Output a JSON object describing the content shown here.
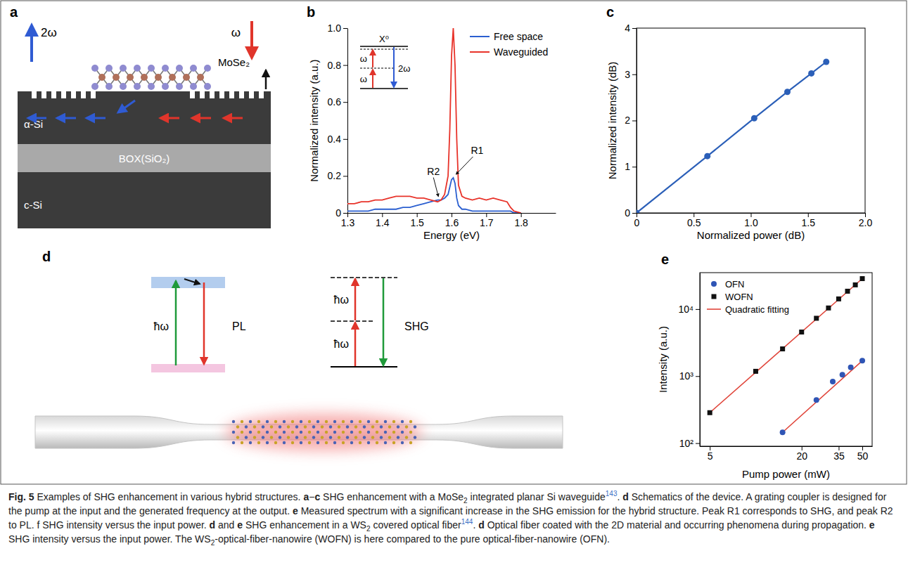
{
  "panel_labels": [
    "a",
    "b",
    "c",
    "d",
    "e"
  ],
  "diagram_a": {
    "out": "2ω",
    "in": "ω",
    "material": "MoSe₂",
    "top_layer": "α-Si",
    "middle_layer": "BOX(SiO₂)",
    "bottom_layer": "c-Si"
  },
  "diagram_b_inset": {
    "level": "X⁰",
    "pump_1": "ω",
    "pump_2": "ω",
    "signal": "2ω"
  },
  "diagram_d": {
    "pl": {
      "photon": "ħω",
      "name": "PL"
    },
    "shg": {
      "photon_1": "ħω",
      "photon_2": "ħω",
      "name": "SHG"
    }
  },
  "chart_data": [
    {
      "type": "line",
      "x_label": "Energy (eV)",
      "y_label": "Normalized intensity (a.u.)",
      "x": [
        1.3,
        1.32,
        1.34,
        1.36,
        1.38,
        1.4,
        1.42,
        1.44,
        1.46,
        1.48,
        1.5,
        1.52,
        1.54,
        1.56,
        1.57,
        1.58,
        1.59,
        1.595,
        1.6,
        1.605,
        1.61,
        1.615,
        1.62,
        1.63,
        1.64,
        1.66,
        1.68,
        1.7,
        1.72,
        1.74,
        1.76,
        1.77,
        1.78,
        1.8
      ],
      "series": [
        {
          "name": "Free space",
          "color": "#2b5fd0",
          "line_style": "solid",
          "values": [
            0.01,
            0.01,
            0.01,
            0.01,
            0.02,
            0.02,
            0.02,
            0.02,
            0.03,
            0.03,
            0.04,
            0.05,
            0.06,
            0.07,
            0.07,
            0.08,
            0.1,
            0.14,
            0.18,
            0.19,
            0.16,
            0.08,
            0.04,
            0.02,
            0.02,
            0.01,
            0.01,
            0.01,
            0.01,
            0.01,
            0.01,
            0.01,
            0.0,
            0.0
          ]
        },
        {
          "name": "Waveguided",
          "color": "#e8332a",
          "line_style": "solid",
          "values": [
            0.05,
            0.05,
            0.06,
            0.06,
            0.07,
            0.07,
            0.08,
            0.09,
            0.09,
            0.09,
            0.08,
            0.08,
            0.07,
            0.06,
            0.07,
            0.1,
            0.2,
            0.45,
            0.85,
            1.0,
            0.8,
            0.4,
            0.15,
            0.09,
            0.08,
            0.07,
            0.08,
            0.07,
            0.08,
            0.07,
            0.06,
            0.03,
            0.01,
            0.0
          ]
        }
      ],
      "xlim": [
        1.3,
        1.9
      ],
      "xticks": [
        1.3,
        1.4,
        1.5,
        1.6,
        1.7,
        1.8
      ],
      "ylim": [
        0,
        1
      ],
      "yticks": [
        0,
        0.2,
        0.4,
        0.6,
        0.8,
        {
          "value": 1,
          "label": "1.0"
        }
      ],
      "legend": "top-right",
      "annotations": [
        {
          "text": "R1",
          "x": 1.605,
          "y": 0.19
        },
        {
          "text": "R2",
          "x": 1.56,
          "y": 0.07
        }
      ]
    },
    {
      "type": "line",
      "marker": "circle",
      "color": "#2b5fb8",
      "x_label": "Normalized power (dB)",
      "y_label": "Normalized intensity (dB)",
      "x": [
        0,
        0.62,
        1.03,
        1.32,
        1.53,
        1.66
      ],
      "values": [
        0,
        1.23,
        2.05,
        2.62,
        3.02,
        3.27
      ],
      "xlim": [
        0,
        2
      ],
      "xticks": [
        0,
        0.5,
        {
          "value": 1,
          "label": "1.0"
        },
        1.5,
        {
          "value": 2,
          "label": "2.0"
        }
      ],
      "ylim": [
        0,
        4
      ],
      "yticks": [
        0,
        1,
        2,
        3,
        4
      ]
    },
    {
      "type": "scatter",
      "log": true,
      "x_label": "Pump power (mW)",
      "y_label": "Intensity (a.u.)",
      "xlim": [
        4.3,
        58
      ],
      "xticks": [
        5,
        20,
        35,
        50
      ],
      "ylim": [
        90,
        35000
      ],
      "yticks": [
        {
          "value": 100,
          "label": "10²"
        },
        {
          "value": 1000,
          "label": "10³"
        },
        {
          "value": 10000,
          "label": "10⁴"
        }
      ],
      "legend": "top-left",
      "series": [
        {
          "name": "OFN",
          "color": "#2f55b5",
          "marker": "circle",
          "x": [
            15,
            25,
            32,
            37,
            42,
            50
          ],
          "values": [
            145,
            440,
            830,
            1050,
            1350,
            1700
          ]
        },
        {
          "name": "WOFN",
          "color": "#111111",
          "marker": "square",
          "x": [
            5,
            10,
            15,
            20,
            25,
            30,
            35,
            40,
            45,
            50
          ],
          "values": [
            285,
            1180,
            2550,
            4550,
            7300,
            10400,
            14200,
            18500,
            23000,
            28500
          ]
        },
        {
          "name": "Quadratic fitting",
          "type": "line",
          "color": "#e0453a",
          "line_style": "solid",
          "x": [
            5,
            50,
            null,
            15,
            50
          ],
          "values": [
            285,
            28500,
            null,
            145,
            1700
          ]
        }
      ]
    }
  ],
  "caption": [
    {
      "text": "Fig. 5",
      "style": "bold"
    },
    {
      "text": " Examples of SHG enhancement in various hybrid structures. "
    },
    {
      "text": "a",
      "style": "bold"
    },
    {
      "text": "−"
    },
    {
      "text": "c",
      "style": "bold"
    },
    {
      "text": " SHG enhancement with a MoSe"
    },
    {
      "text": "2",
      "style": "sub"
    },
    {
      "text": " integrated planar Si waveguide"
    },
    {
      "text": "143",
      "style": "sup"
    },
    {
      "text": ". "
    },
    {
      "text": "d",
      "style": "bold"
    },
    {
      "text": " Schematics of the device. A grating coupler is designed for the pump at the input and the generated frequency at the output. "
    },
    {
      "text": "e",
      "style": "bold"
    },
    {
      "text": " Measured spectrum with a significant increase in the SHG emission for the hybrid structure. Peak R1 corresponds to SHG, and peak R2 to PL. f SHG intensity versus the input power. "
    },
    {
      "text": "d",
      "style": "bold"
    },
    {
      "text": " and "
    },
    {
      "text": "e",
      "style": "bold"
    },
    {
      "text": " SHG enhancement in a WS"
    },
    {
      "text": "2",
      "style": "sub"
    },
    {
      "text": " covered optical fiber"
    },
    {
      "text": "144",
      "style": "sup"
    },
    {
      "text": ". "
    },
    {
      "text": "d",
      "style": "bold"
    },
    {
      "text": " Optical fiber coated with the 2D material and occurring phenomena during propagation. "
    },
    {
      "text": "e",
      "style": "bold"
    },
    {
      "text": " SHG intensity versus the input power. The WS"
    },
    {
      "text": "2",
      "style": "sub"
    },
    {
      "text": "-optical-fiber-nanowire (WOFN) is here compared to the pure optical-fiber-nanowire (OFN)."
    }
  ]
}
